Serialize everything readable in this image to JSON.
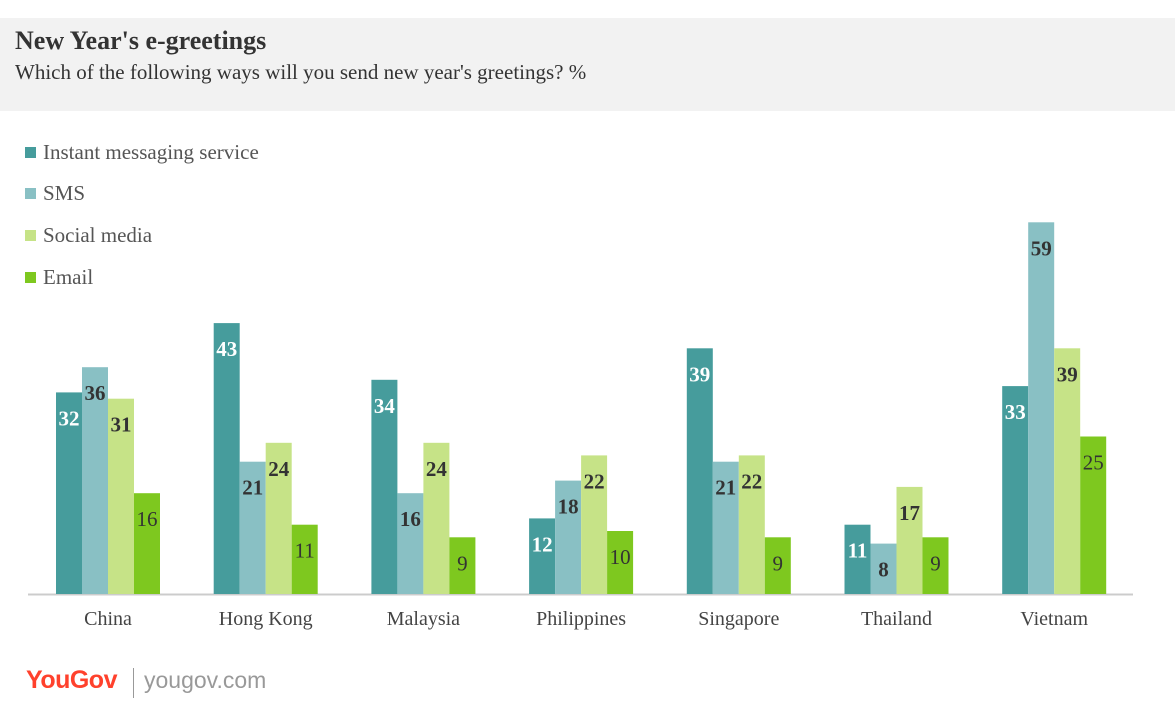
{
  "header": {
    "title": "New Year's e-greetings",
    "subtitle": "Which of the following ways will you send new year's greetings? %"
  },
  "footer": {
    "brand": "YouGov",
    "url": "yougov.com"
  },
  "colors": {
    "instant_messaging": "#469c9c",
    "sms": "#89c0c4",
    "social_media": "#c6e387",
    "email": "#7ec81f",
    "axis": "#cccccc",
    "label_dark": "#333333",
    "label_light": "#ffffff"
  },
  "chart_data": {
    "type": "bar",
    "title": "New Year's e-greetings",
    "subtitle": "Which of the following ways will you send new year's greetings? %",
    "xlabel": "",
    "ylabel": "",
    "ylim": [
      0,
      60
    ],
    "grid": false,
    "legend_position": "top-left",
    "categories": [
      "China",
      "Hong Kong",
      "Malaysia",
      "Philippines",
      "Singapore",
      "Thailand",
      "Vietnam"
    ],
    "series": [
      {
        "name": "Instant messaging service",
        "values": [
          32,
          43,
          34,
          12,
          39,
          11,
          33
        ]
      },
      {
        "name": "SMS",
        "values": [
          36,
          21,
          16,
          18,
          21,
          8,
          59
        ]
      },
      {
        "name": "Social media",
        "values": [
          31,
          24,
          24,
          22,
          22,
          17,
          39
        ]
      },
      {
        "name": "Email",
        "values": [
          16,
          11,
          9,
          10,
          9,
          9,
          25
        ]
      }
    ]
  }
}
